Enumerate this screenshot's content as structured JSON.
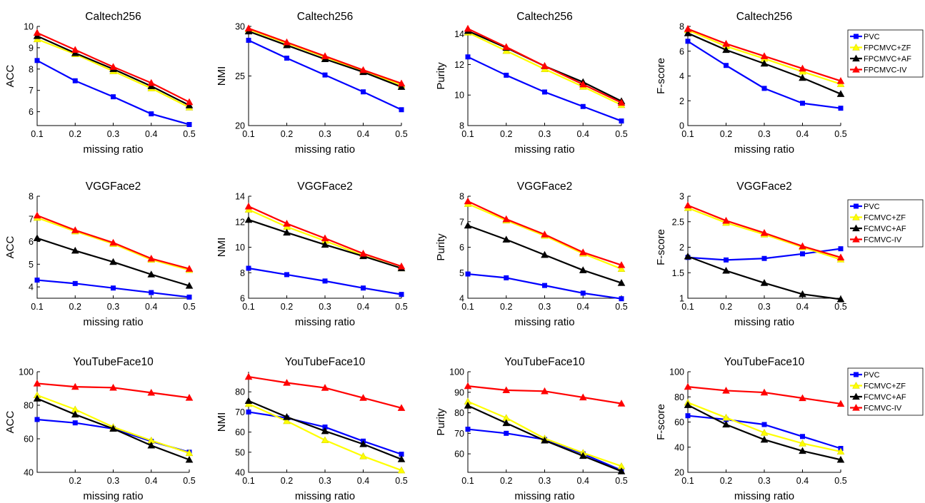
{
  "figure": {
    "legend_groups": [
      [
        "PVC",
        "FPCMVC+ZF",
        "FPCMVC+AF",
        "FPCMVC-IV"
      ],
      [
        "PVC",
        "FCMVC+ZF",
        "FCMVC+AF",
        "FCMVC-IV"
      ],
      [
        "PVC",
        "FCMVC+ZF",
        "FCMVC+AF",
        "FCMVC-IV"
      ]
    ],
    "series_colors": [
      "#0000ff",
      "#ffff00",
      "#000000",
      "#ff0000"
    ],
    "series_markers": [
      "square",
      "triangle",
      "triangle",
      "triangle"
    ],
    "legend_placement": "right of last column, one per row"
  },
  "chart_data": [
    {
      "type": "line",
      "title": "Caltech256",
      "xlabel": "missing ratio",
      "ylabel": "ACC",
      "x": [
        0.1,
        0.2,
        0.3,
        0.4,
        0.5
      ],
      "xlim": [
        0.1,
        0.5
      ],
      "ylim": [
        5.35,
        10
      ],
      "xticks": [
        "0.1",
        "0.2",
        "0.3",
        "0.4",
        "0.5"
      ],
      "yticks": [
        6,
        7,
        8,
        9,
        10
      ],
      "grid": false,
      "series": [
        {
          "name": "PVC",
          "values": [
            8.4,
            7.45,
            6.7,
            5.9,
            5.4
          ]
        },
        {
          "name": "FPCMVC+ZF",
          "values": [
            9.4,
            8.7,
            7.9,
            7.1,
            6.2
          ]
        },
        {
          "name": "FPCMVC+AF",
          "values": [
            9.55,
            8.75,
            8.0,
            7.2,
            6.3
          ]
        },
        {
          "name": "FPCMVC-IV",
          "values": [
            9.7,
            8.9,
            8.1,
            7.35,
            6.45
          ]
        }
      ]
    },
    {
      "type": "line",
      "title": "Caltech256",
      "xlabel": "missing ratio",
      "ylabel": "NMI",
      "x": [
        0.1,
        0.2,
        0.3,
        0.4,
        0.5
      ],
      "xlim": [
        0.1,
        0.5
      ],
      "ylim": [
        20,
        30
      ],
      "xticks": [
        "0.1",
        "0.2",
        "0.3",
        "0.4",
        "0.5"
      ],
      "yticks": [
        20,
        25,
        30
      ],
      "grid": false,
      "series": [
        {
          "name": "PVC",
          "values": [
            28.6,
            26.8,
            25.1,
            23.4,
            21.6
          ]
        },
        {
          "name": "FPCMVC+ZF",
          "values": [
            29.7,
            28.3,
            26.9,
            25.5,
            24.1
          ]
        },
        {
          "name": "FPCMVC+AF",
          "values": [
            29.5,
            28.1,
            26.7,
            25.4,
            23.9
          ]
        },
        {
          "name": "FPCMVC-IV",
          "values": [
            29.8,
            28.4,
            27.0,
            25.6,
            24.25
          ]
        }
      ]
    },
    {
      "type": "line",
      "title": "Caltech256",
      "xlabel": "missing ratio",
      "ylabel": "Purity",
      "x": [
        0.1,
        0.2,
        0.3,
        0.4,
        0.5
      ],
      "xlim": [
        0.1,
        0.5
      ],
      "ylim": [
        8,
        14.5
      ],
      "xticks": [
        "0.1",
        "0.2",
        "0.3",
        "0.4",
        "0.5"
      ],
      "yticks": [
        8,
        10,
        12,
        14
      ],
      "grid": false,
      "series": [
        {
          "name": "PVC",
          "values": [
            12.5,
            11.3,
            10.2,
            9.25,
            8.3
          ]
        },
        {
          "name": "FPCMVC+ZF",
          "values": [
            14.1,
            12.9,
            11.7,
            10.55,
            9.35
          ]
        },
        {
          "name": "FPCMVC+AF",
          "values": [
            14.2,
            13.1,
            11.9,
            10.85,
            9.6
          ]
        },
        {
          "name": "FPCMVC-IV",
          "values": [
            14.35,
            13.15,
            11.9,
            10.7,
            9.5
          ]
        }
      ]
    },
    {
      "type": "line",
      "title": "Caltech256",
      "xlabel": "missing ratio",
      "ylabel": "F-score",
      "x": [
        0.1,
        0.2,
        0.3,
        0.4,
        0.5
      ],
      "xlim": [
        0.1,
        0.5
      ],
      "ylim": [
        0,
        8
      ],
      "xticks": [
        "0.1",
        "0.2",
        "0.3",
        "0.4",
        "0.5"
      ],
      "yticks": [
        0,
        2,
        4,
        6,
        8
      ],
      "grid": false,
      "series": [
        {
          "name": "PVC",
          "values": [
            6.8,
            4.85,
            3.0,
            1.8,
            1.4
          ]
        },
        {
          "name": "FPCMVC+ZF",
          "values": [
            7.7,
            6.4,
            5.4,
            4.35,
            3.35
          ]
        },
        {
          "name": "FPCMVC+AF",
          "values": [
            7.45,
            6.1,
            5.0,
            3.85,
            2.55
          ]
        },
        {
          "name": "FPCMVC-IV",
          "values": [
            7.8,
            6.6,
            5.6,
            4.6,
            3.6
          ]
        }
      ]
    },
    {
      "type": "line",
      "title": "VGGFace2",
      "xlabel": "missing ratio",
      "ylabel": "ACC",
      "x": [
        0.1,
        0.2,
        0.3,
        0.4,
        0.5
      ],
      "xlim": [
        0.1,
        0.5
      ],
      "ylim": [
        3.5,
        8
      ],
      "xticks": [
        "0.1",
        "0.2",
        "0.3",
        "0.4",
        "0.5"
      ],
      "yticks": [
        4,
        5,
        6,
        7,
        8
      ],
      "grid": false,
      "series": [
        {
          "name": "PVC",
          "values": [
            4.3,
            4.15,
            3.95,
            3.75,
            3.55
          ]
        },
        {
          "name": "FCMVC+ZF",
          "values": [
            7.05,
            6.45,
            5.9,
            5.2,
            4.75
          ]
        },
        {
          "name": "FCMVC+AF",
          "values": [
            6.15,
            5.6,
            5.1,
            4.55,
            4.05
          ]
        },
        {
          "name": "FCMVC-IV",
          "values": [
            7.15,
            6.5,
            5.95,
            5.25,
            4.8
          ]
        }
      ]
    },
    {
      "type": "line",
      "title": "VGGFace2",
      "xlabel": "missing ratio",
      "ylabel": "NMI",
      "x": [
        0.1,
        0.2,
        0.3,
        0.4,
        0.5
      ],
      "xlim": [
        0.1,
        0.5
      ],
      "ylim": [
        6,
        14
      ],
      "xticks": [
        "0.1",
        "0.2",
        "0.3",
        "0.4",
        "0.5"
      ],
      "yticks": [
        6,
        8,
        10,
        12,
        14
      ],
      "grid": false,
      "series": [
        {
          "name": "PVC",
          "values": [
            8.35,
            7.85,
            7.35,
            6.8,
            6.3
          ]
        },
        {
          "name": "FCMVC+ZF",
          "values": [
            12.95,
            11.6,
            10.5,
            9.35,
            8.35
          ]
        },
        {
          "name": "FCMVC+AF",
          "values": [
            12.15,
            11.15,
            10.2,
            9.3,
            8.35
          ]
        },
        {
          "name": "FCMVC-IV",
          "values": [
            13.2,
            11.85,
            10.7,
            9.5,
            8.5
          ]
        }
      ]
    },
    {
      "type": "line",
      "title": "VGGFace2",
      "xlabel": "missing ratio",
      "ylabel": "Purity",
      "x": [
        0.1,
        0.2,
        0.3,
        0.4,
        0.5
      ],
      "xlim": [
        0.1,
        0.5
      ],
      "ylim": [
        4,
        8
      ],
      "xticks": [
        "0.1",
        "0.2",
        "0.3",
        "0.4",
        "0.5"
      ],
      "yticks": [
        4,
        5,
        6,
        7,
        8
      ],
      "grid": false,
      "series": [
        {
          "name": "PVC",
          "values": [
            4.95,
            4.8,
            4.5,
            4.2,
            3.98
          ]
        },
        {
          "name": "FCMVC+ZF",
          "values": [
            7.7,
            7.05,
            6.45,
            5.75,
            5.15
          ]
        },
        {
          "name": "FCMVC+AF",
          "values": [
            6.85,
            6.3,
            5.7,
            5.1,
            4.6
          ]
        },
        {
          "name": "FCMVC-IV",
          "values": [
            7.8,
            7.1,
            6.5,
            5.8,
            5.3
          ]
        }
      ]
    },
    {
      "type": "line",
      "title": "VGGFace2",
      "xlabel": "missing ratio",
      "ylabel": "F-score",
      "x": [
        0.1,
        0.2,
        0.3,
        0.4,
        0.5
      ],
      "xlim": [
        0.1,
        0.5
      ],
      "ylim": [
        1,
        3
      ],
      "xticks": [
        "0.1",
        "0.2",
        "0.3",
        "0.4",
        "0.5"
      ],
      "yticks": [
        "1",
        "1.5",
        "2",
        "2.5",
        "3"
      ],
      "grid": false,
      "series": [
        {
          "name": "PVC",
          "values": [
            1.8,
            1.75,
            1.78,
            1.87,
            1.97
          ]
        },
        {
          "name": "FCMVC+ZF",
          "values": [
            2.77,
            2.48,
            2.25,
            2.0,
            1.76
          ]
        },
        {
          "name": "FCMVC+AF",
          "values": [
            1.82,
            1.54,
            1.3,
            1.08,
            0.98
          ]
        },
        {
          "name": "FCMVC-IV",
          "values": [
            2.82,
            2.52,
            2.28,
            2.02,
            1.8
          ]
        }
      ]
    },
    {
      "type": "line",
      "title": "YouTubeFace10",
      "xlabel": "missing ratio",
      "ylabel": "ACC",
      "x": [
        0.1,
        0.2,
        0.3,
        0.4,
        0.5
      ],
      "xlim": [
        0.1,
        0.5
      ],
      "ylim": [
        40,
        100
      ],
      "xticks": [
        "",
        "0.2",
        "0.3",
        "0.4",
        "0.5"
      ],
      "yticks": [
        40,
        60,
        80,
        100
      ],
      "grid": false,
      "series": [
        {
          "name": "PVC",
          "values": [
            71.5,
            69.5,
            66,
            58.5,
            52
          ]
        },
        {
          "name": "FCMVC+ZF",
          "values": [
            86,
            77.5,
            67,
            59,
            51.5
          ]
        },
        {
          "name": "FCMVC+AF",
          "values": [
            84,
            74.5,
            66,
            56,
            47.5
          ]
        },
        {
          "name": "FCMVC-IV",
          "values": [
            93,
            91,
            90.5,
            87.5,
            84.5
          ]
        }
      ]
    },
    {
      "type": "line",
      "title": "YouTubeFace10",
      "xlabel": "missing ratio",
      "ylabel": "NMI",
      "x": [
        0.1,
        0.2,
        0.3,
        0.4,
        0.5
      ],
      "xlim": [
        0.1,
        0.5
      ],
      "ylim": [
        40,
        90
      ],
      "xticks": [
        "0.1",
        "0.2",
        "0.3",
        "0.4",
        "0.5"
      ],
      "yticks": [
        40,
        50,
        60,
        70,
        80
      ],
      "grid": false,
      "series": [
        {
          "name": "PVC",
          "values": [
            70,
            67,
            62.5,
            55.5,
            49
          ]
        },
        {
          "name": "FCMVC+ZF",
          "values": [
            74,
            65.5,
            56,
            48,
            41
          ]
        },
        {
          "name": "FCMVC+AF",
          "values": [
            75.5,
            67.5,
            60.5,
            54,
            46.5
          ]
        },
        {
          "name": "FCMVC-IV",
          "values": [
            87.5,
            84.5,
            82,
            77,
            72
          ]
        }
      ]
    },
    {
      "type": "line",
      "title": "YouTubeFace10",
      "xlabel": "missing ratio",
      "ylabel": "Purity",
      "x": [
        0.1,
        0.2,
        0.3,
        0.4,
        0.5
      ],
      "xlim": [
        0.1,
        0.5
      ],
      "ylim": [
        51,
        100
      ],
      "xticks": [
        "0.1",
        "0.2",
        "0.3",
        "0.4",
        "0.5"
      ],
      "yticks": [
        60,
        70,
        80,
        90,
        100
      ],
      "grid": false,
      "series": [
        {
          "name": "PVC",
          "values": [
            72,
            70,
            67,
            60,
            52
          ]
        },
        {
          "name": "FCMVC+ZF",
          "values": [
            85.5,
            77.5,
            67.5,
            60.5,
            54
          ]
        },
        {
          "name": "FCMVC+AF",
          "values": [
            83.5,
            75,
            66.5,
            59,
            51.5
          ]
        },
        {
          "name": "FCMVC-IV",
          "values": [
            93,
            91,
            90.5,
            87.5,
            84.5
          ]
        }
      ]
    },
    {
      "type": "line",
      "title": "YouTubeFace10",
      "xlabel": "missing ratio",
      "ylabel": "F-score",
      "x": [
        0.1,
        0.2,
        0.3,
        0.4,
        0.5
      ],
      "xlim": [
        0.1,
        0.5
      ],
      "ylim": [
        20,
        100
      ],
      "xticks": [
        "0.1",
        "0.2",
        "0.3",
        "0.4",
        "0.5"
      ],
      "yticks": [
        20,
        40,
        60,
        80,
        100
      ],
      "grid": false,
      "series": [
        {
          "name": "PVC",
          "values": [
            65,
            62,
            58,
            48.5,
            39
          ]
        },
        {
          "name": "FCMVC+ZF",
          "values": [
            75.5,
            63.5,
            51.5,
            43,
            36.5
          ]
        },
        {
          "name": "FCMVC+AF",
          "values": [
            73.5,
            58,
            46,
            37,
            30
          ]
        },
        {
          "name": "FCMVC-IV",
          "values": [
            88,
            85,
            83.5,
            79,
            74.5
          ]
        }
      ]
    }
  ]
}
